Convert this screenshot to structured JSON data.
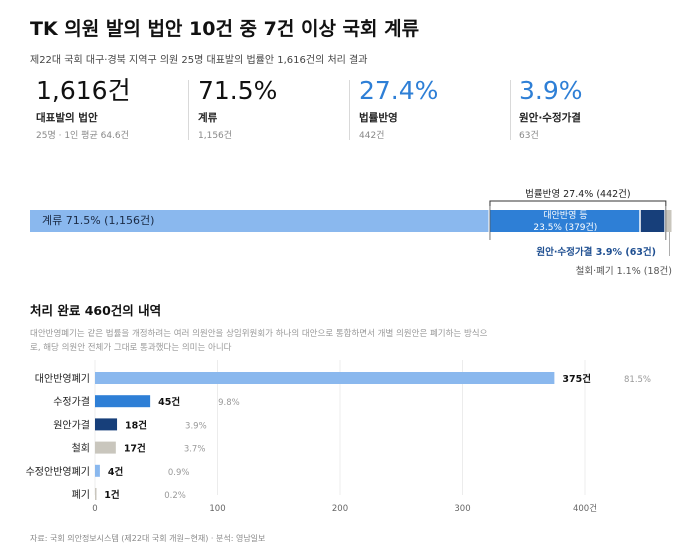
{
  "title": "TK 의원 발의 법안 10건 중 7건 이상 국회 계류",
  "subtitle": "제22대 국회 대구·경북 지역구 의원 25명 대표발의 법률안 1,616건의 처리 결과",
  "kpis": [
    {
      "value": "1,616건",
      "label": "대표발의 법안",
      "sub": "25명 · 1인 평균 64.6건",
      "color": "#111111"
    },
    {
      "value": "71.5%",
      "label": "계류",
      "sub": "1,156건",
      "color": "#111111"
    },
    {
      "value": "27.4%",
      "label": "법률반영",
      "sub": "442건",
      "color": "#2e7fd6"
    },
    {
      "value": "3.9%",
      "label": "원안·수정가결",
      "sub": "63건",
      "color": "#2e7fd6"
    }
  ],
  "section2_title": "처리 완료 460건의 내역",
  "note": "대안반영폐기는 같은 법률을 개정하려는 여러 의원안을 상임위원회가 하나의 대안으로 통합하면서 개별 의원안은 폐기하는 방식으로, 해당 의원안 전체가 그대로 통과했다는 의미는 아니다",
  "source": "자료: 국회 의안정보시스템 (제22대 국회 개원~현재) · 분석: 영남일보",
  "colors": {
    "light_blue": "#8ab8ee",
    "mid_blue": "#2e7fd6",
    "navy": "#173f7a",
    "gray": "#c9c6bd",
    "text_blue": "#1f4f91"
  },
  "chart_data": [
    {
      "type": "bar",
      "orientation": "horizontal-stacked",
      "total": 1616,
      "segments": [
        {
          "name": "계류",
          "value": 1156,
          "label": "계류 71.5% (1,156건)"
        },
        {
          "name": "대안반영 등",
          "value": 379,
          "label": "대안반영 등",
          "sublabel": "23.5% (379건)"
        },
        {
          "name": "원안·수정가결",
          "value": 63,
          "label": "원안·수정가결 3.9% (63건)"
        },
        {
          "name": "철회·폐기",
          "value": 18,
          "label": "철회·폐기 1.1% (18건)"
        }
      ],
      "bracket_label": "법률반영 27.4% (442건)"
    },
    {
      "type": "bar",
      "orientation": "horizontal",
      "categories": [
        "대안반영폐기",
        "수정가결",
        "원안가결",
        "철회",
        "수정안반영폐기",
        "폐기"
      ],
      "values": [
        375,
        45,
        18,
        17,
        4,
        1
      ],
      "value_labels": [
        "375건",
        "45건",
        "18건",
        "17건",
        "4건",
        "1건"
      ],
      "percent_labels": [
        "81.5%",
        "9.8%",
        "3.9%",
        "3.7%",
        "0.9%",
        "0.2%"
      ],
      "bar_colors": [
        "#8ab8ee",
        "#2e7fd6",
        "#173f7a",
        "#c9c6bd",
        "#8ab8ee",
        "#c9c6bd"
      ],
      "xlim": [
        0,
        400
      ],
      "xticks": [
        0,
        100,
        200,
        300,
        400
      ],
      "xtick_labels": [
        "0",
        "100",
        "200",
        "300",
        "400건"
      ],
      "grid": true
    }
  ]
}
